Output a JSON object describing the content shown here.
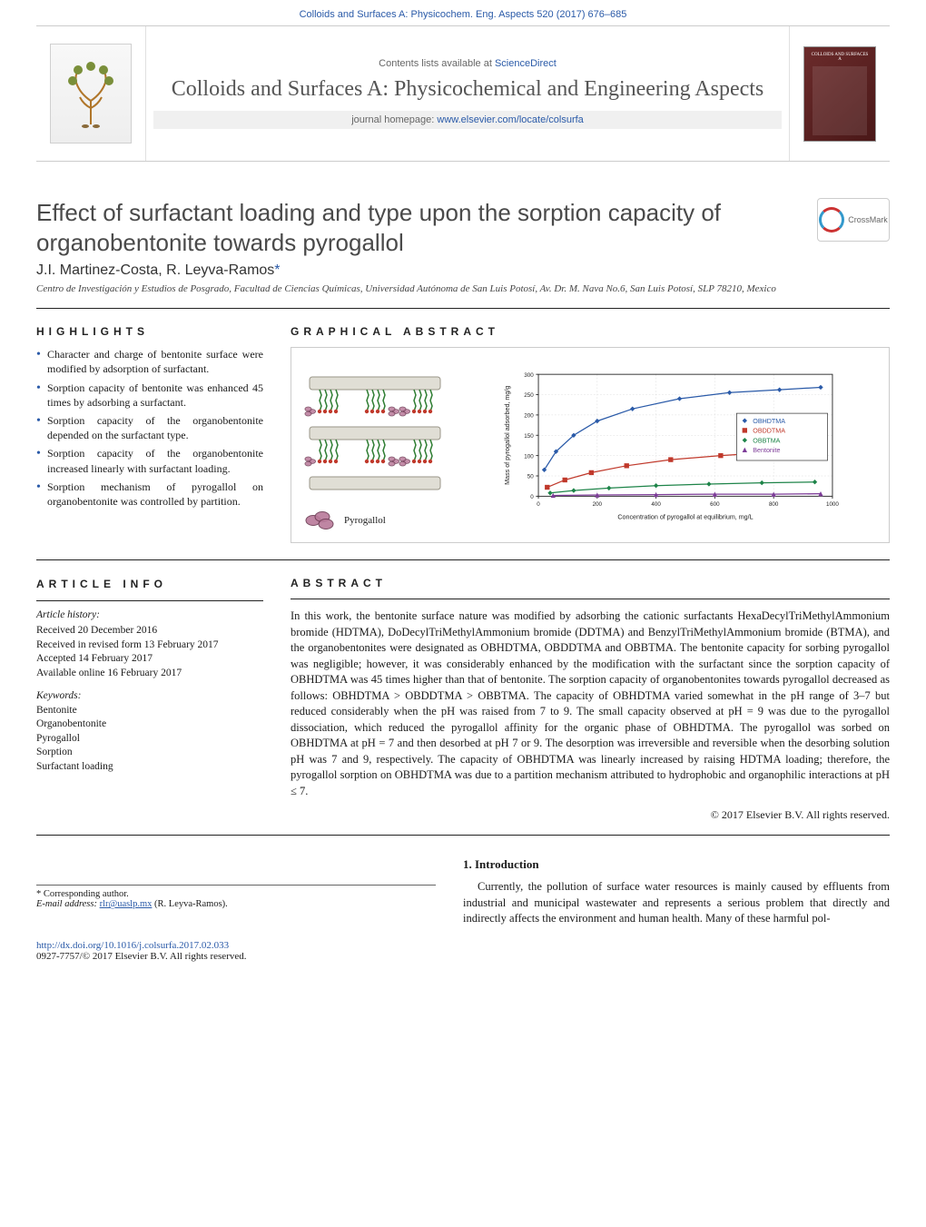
{
  "header": {
    "citation": "Colloids and Surfaces A: Physicochem. Eng. Aspects 520 (2017) 676–685",
    "contents_line_prefix": "Contents lists available at ",
    "contents_link": "ScienceDirect",
    "journal_name": "Colloids and Surfaces A: Physicochemical and Engineering Aspects",
    "homepage_prefix": "journal homepage: ",
    "homepage_url": "www.elsevier.com/locate/colsurfa",
    "publisher_name": "ELSEVIER",
    "crossmark_label": "CrossMark"
  },
  "title": "Effect of surfactant loading and type upon the sorption capacity of organobentonite towards pyrogallol",
  "authors": "J.I. Martinez-Costa, R. Leyva-Ramos",
  "corresponding_mark": "*",
  "affiliation": "Centro de Investigación y Estudios de Posgrado, Facultad de Ciencias Químicas, Universidad Autónoma de San Luis Potosí, Av. Dr. M. Nava No.6, San Luis Potosí, SLP 78210, Mexico",
  "highlights_head": "HIGHLIGHTS",
  "highlights": [
    "Character and charge of bentonite surface were modified by adsorption of surfactant.",
    "Sorption capacity of bentonite was enhanced 45 times by adsorbing a surfactant.",
    "Sorption capacity of the organobentonite depended on the surfactant type.",
    "Sorption capacity of the organobentonite increased linearly with surfactant loading.",
    "Sorption mechanism of pyrogallol on organobentonite was controlled by partition."
  ],
  "graphical_abstract_head": "GRAPHICAL ABSTRACT",
  "graphical_abstract": {
    "pyrogallol_label": "Pyrogallol",
    "chart": {
      "type": "scatter-line",
      "xlabel": "Concentration of pyrogallol at equilibrium, mg/L",
      "ylabel": "Mass of pyrogallol adsorbed, mg/g",
      "xlim": [
        0,
        1000
      ],
      "ylim": [
        0,
        300
      ],
      "xticks": [
        0,
        200,
        400,
        600,
        800,
        1000
      ],
      "yticks": [
        0,
        50,
        100,
        150,
        200,
        250,
        300
      ],
      "label_fontsize": 8,
      "tick_fontsize": 7,
      "series": [
        {
          "name": "OBHDTMA",
          "color": "#2a5aa8",
          "marker": "diamond",
          "x": [
            20,
            60,
            120,
            200,
            320,
            480,
            650,
            820,
            960
          ],
          "y": [
            65,
            110,
            150,
            185,
            215,
            240,
            255,
            262,
            268
          ]
        },
        {
          "name": "OBDDTMA",
          "color": "#c0392b",
          "marker": "square",
          "x": [
            30,
            90,
            180,
            300,
            450,
            620,
            800,
            950
          ],
          "y": [
            22,
            40,
            58,
            75,
            90,
            100,
            108,
            112
          ]
        },
        {
          "name": "OBBTMA",
          "color": "#1e8449",
          "marker": "diamond",
          "x": [
            40,
            120,
            240,
            400,
            580,
            760,
            940
          ],
          "y": [
            8,
            14,
            20,
            26,
            30,
            33,
            35
          ]
        },
        {
          "name": "Bentonite",
          "color": "#7d3c98",
          "marker": "triangle",
          "x": [
            50,
            200,
            400,
            600,
            800,
            960
          ],
          "y": [
            2,
            3,
            4,
            5,
            5,
            6
          ]
        }
      ],
      "legend_border_color": "#333333",
      "grid_color": "#d8d8d8",
      "axis_color": "#222222"
    },
    "layer_colors": {
      "slab": "#e0ded5",
      "slab_border": "#9a9688",
      "surfactant_tail": "#2e7d32",
      "surfactant_head": "#c0392b",
      "pyro_lobe": "#b97a9a",
      "pyro_lobe_border": "#6b3a52"
    }
  },
  "article_info_head": "ARTICLE INFO",
  "history_head": "Article history:",
  "history": [
    "Received 20 December 2016",
    "Received in revised form 13 February 2017",
    "Accepted 14 February 2017",
    "Available online 16 February 2017"
  ],
  "keywords_head": "Keywords:",
  "keywords": [
    "Bentonite",
    "Organobentonite",
    "Pyrogallol",
    "Sorption",
    "Surfactant loading"
  ],
  "abstract_head": "ABSTRACT",
  "abstract": "In this work, the bentonite surface nature was modified by adsorbing the cationic surfactants HexaDecylTriMethylAmmonium bromide (HDTMA), DoDecylTriMethylAmmonium bromide (DDTMA) and BenzylTriMethylAmmonium bromide (BTMA), and the organobentonites were designated as OBHDTMA, OBDDTMA and OBBTMA. The bentonite capacity for sorbing pyrogallol was negligible; however, it was considerably enhanced by the modification with the surfactant since the sorption capacity of OBHDTMA was 45 times higher than that of bentonite. The sorption capacity of organobentonites towards pyrogallol decreased as follows: OBHDTMA > OBDDTMA > OBBTMA. The capacity of OBHDTMA varied somewhat in the pH range of 3–7 but reduced considerably when the pH was raised from 7 to 9. The small capacity observed at pH = 9 was due to the pyrogallol dissociation, which reduced the pyrogallol affinity for the organic phase of OBHDTMA. The pyrogallol was sorbed on OBHDTMA at pH = 7 and then desorbed at pH 7 or 9. The desorption was irreversible and reversible when the desorbing solution pH was 7 and 9, respectively. The capacity of OBHDTMA was linearly increased by raising HDTMA loading; therefore, the pyrogallol sorption on OBHDTMA was due to a partition mechanism attributed to hydrophobic and organophilic interactions at pH ≤ 7.",
  "copyright": "© 2017 Elsevier B.V. All rights reserved.",
  "intro_head": "1.  Introduction",
  "intro_para": "Currently, the pollution of surface water resources is mainly caused by effluents from industrial and municipal wastewater and represents a serious problem that directly and indirectly affects the environment and human health. Many of these harmful pol-",
  "footer": {
    "corr_label": "* Corresponding author.",
    "email_label": "E-mail address: ",
    "email": "rlr@uaslp.mx",
    "email_name": " (R. Leyva-Ramos).",
    "doi_url": "http://dx.doi.org/10.1016/j.colsurfa.2017.02.033",
    "issn_line": "0927-7757/© 2017 Elsevier B.V. All rights reserved."
  },
  "colors": {
    "link": "#2a5aa8",
    "text": "#1a1a1a",
    "muted": "#666666"
  }
}
